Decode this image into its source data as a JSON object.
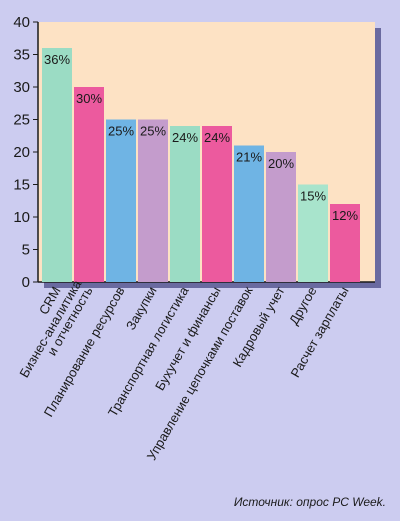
{
  "chart_data": {
    "type": "bar",
    "categories": [
      "CRM",
      "Бизнес-аналитика и отчетность",
      "Планирование ресурсов",
      "Закупки",
      "Транспортная логистика",
      "Бухучет и финансы",
      "Управление цепочками поставок",
      "Кадровый учет",
      "Другое",
      "Расчет зарплаты"
    ],
    "values": [
      36,
      30,
      25,
      25,
      24,
      24,
      21,
      20,
      15,
      12
    ],
    "value_labels": [
      "36%",
      "30%",
      "25%",
      "25%",
      "24%",
      "24%",
      "21%",
      "20%",
      "15%",
      "12%"
    ],
    "bar_colors": [
      "#9bdcc4",
      "#ec5a9e",
      "#6fb4e4",
      "#c49ccc",
      "#9bdcc4",
      "#ec5a9e",
      "#6fb4e4",
      "#c49ccc",
      "#a8e4cc",
      "#ec5a9e"
    ],
    "ylim": [
      0,
      40
    ],
    "yticks": [
      "0",
      "5",
      "10",
      "15",
      "20",
      "25",
      "30",
      "35",
      "40"
    ],
    "grid": false,
    "plot_background": "#fde2c4",
    "page_background": "#ccccf0"
  },
  "source_note": "Источник: опрос PC Week."
}
